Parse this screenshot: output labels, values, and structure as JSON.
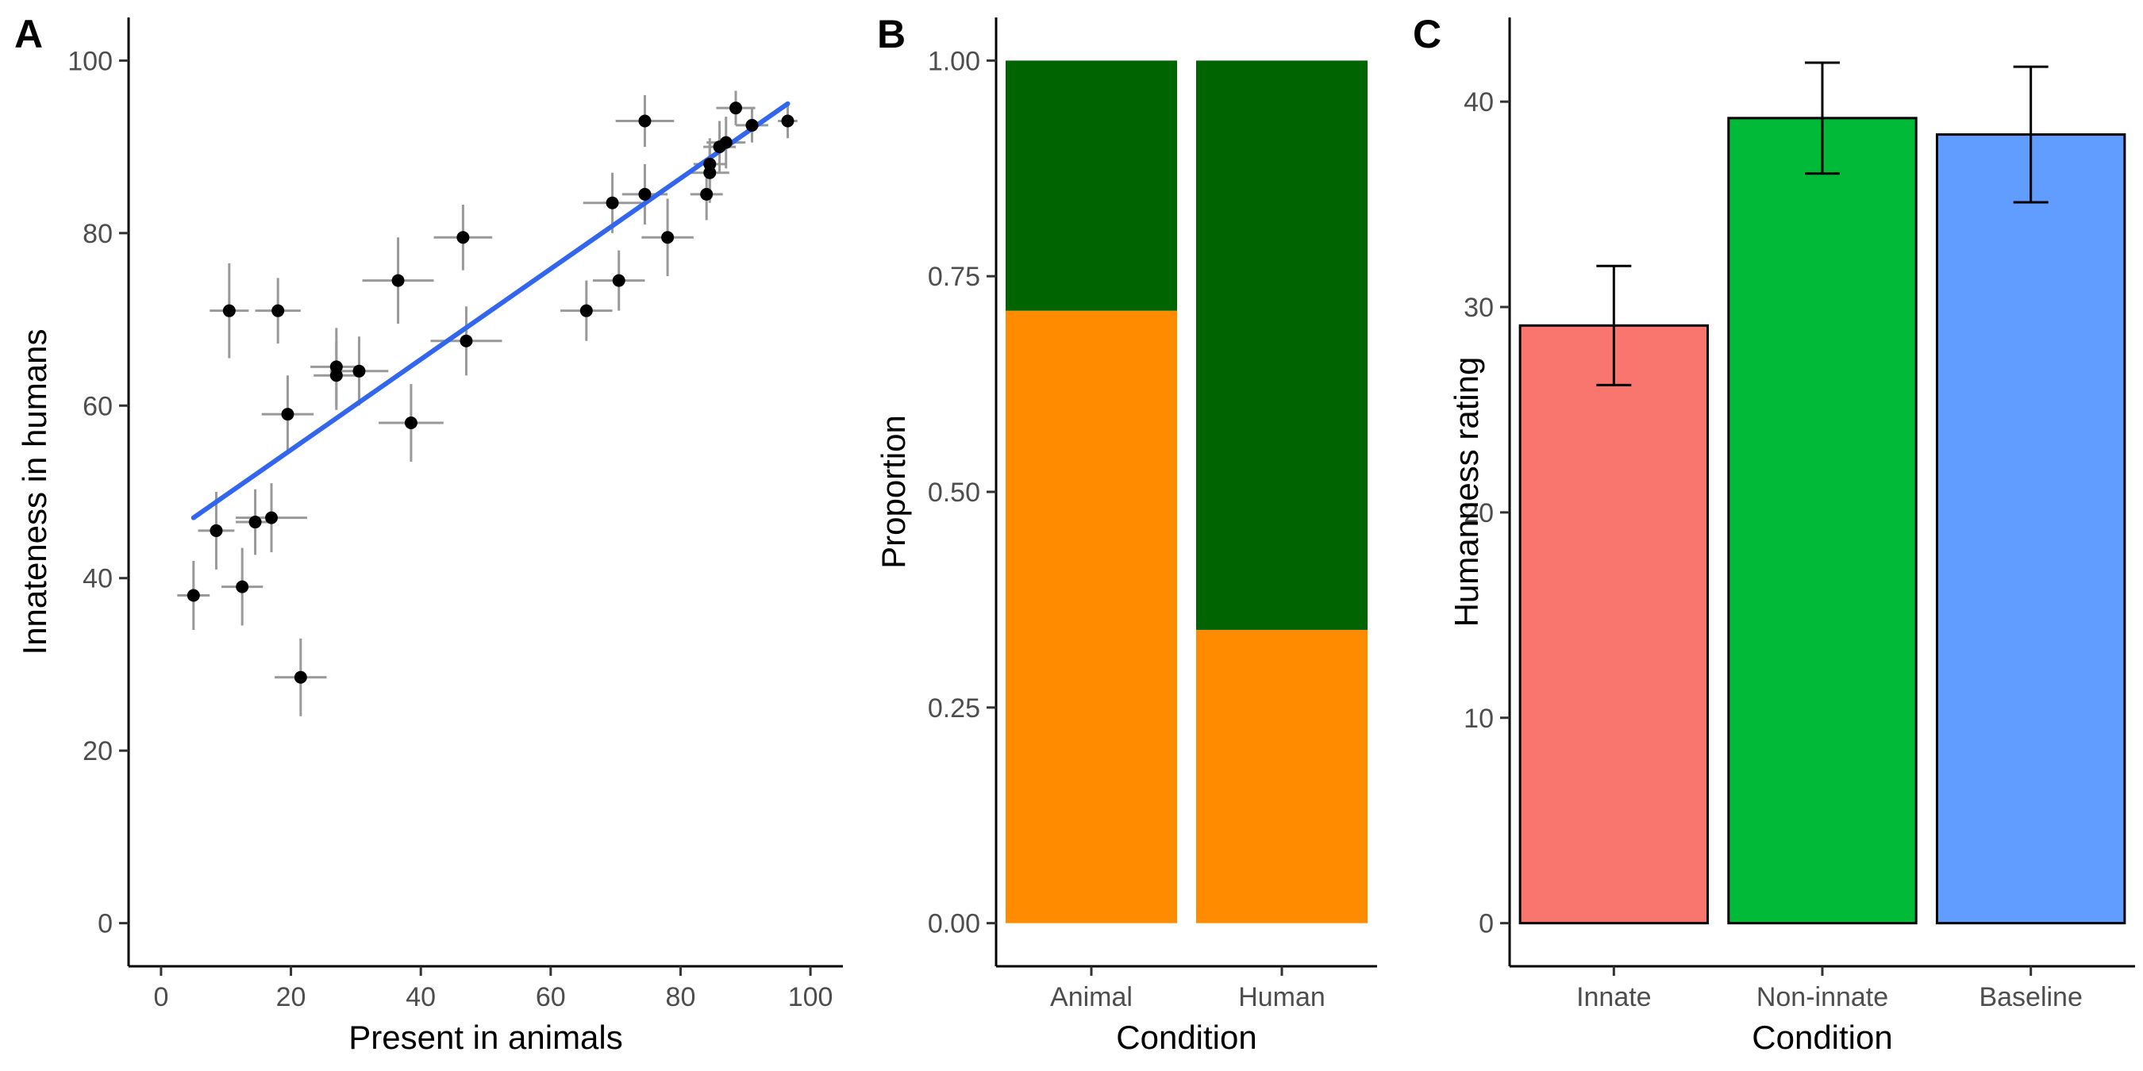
{
  "chart_data": [
    {
      "panel": "A",
      "type": "scatter",
      "xlabel": "Present in animals",
      "ylabel": "Innateness in humans",
      "xlim": [
        -5,
        105
      ],
      "ylim": [
        -5,
        105
      ],
      "xticks": [
        0,
        20,
        40,
        60,
        80,
        100
      ],
      "yticks": [
        0,
        20,
        40,
        60,
        80,
        100
      ],
      "grid": false,
      "point_color": "#000000",
      "errorbar_color": "#999999",
      "fit_line": {
        "x0": 5,
        "y0": 47,
        "x1": 96.5,
        "y1": 95,
        "color": "#3366ee"
      },
      "points": [
        {
          "x": 5,
          "y": 38,
          "xerr": 2.5,
          "yerr": 4
        },
        {
          "x": 8.5,
          "y": 45.5,
          "xerr": 2.8,
          "yerr": 4.5
        },
        {
          "x": 10.5,
          "y": 71,
          "xerr": 3,
          "yerr": 5.5
        },
        {
          "x": 12.5,
          "y": 39,
          "xerr": 3.2,
          "yerr": 4.5
        },
        {
          "x": 14.5,
          "y": 46.5,
          "xerr": 3,
          "yerr": 3.8
        },
        {
          "x": 17,
          "y": 47,
          "xerr": 5.5,
          "yerr": 4
        },
        {
          "x": 18,
          "y": 71,
          "xerr": 3.5,
          "yerr": 3.8
        },
        {
          "x": 19.5,
          "y": 59,
          "xerr": 4,
          "yerr": 4.5
        },
        {
          "x": 21.5,
          "y": 28.5,
          "xerr": 4,
          "yerr": 4.5
        },
        {
          "x": 27,
          "y": 64.5,
          "xerr": 4,
          "yerr": 4.5
        },
        {
          "x": 27,
          "y": 63.5,
          "xerr": 3.5,
          "yerr": 4
        },
        {
          "x": 30.5,
          "y": 64,
          "xerr": 4.5,
          "yerr": 4
        },
        {
          "x": 36.5,
          "y": 74.5,
          "xerr": 5.5,
          "yerr": 5
        },
        {
          "x": 38.5,
          "y": 58,
          "xerr": 5,
          "yerr": 4.5
        },
        {
          "x": 46.5,
          "y": 79.5,
          "xerr": 4.5,
          "yerr": 3.8
        },
        {
          "x": 47,
          "y": 67.5,
          "xerr": 5.5,
          "yerr": 4
        },
        {
          "x": 65.5,
          "y": 71,
          "xerr": 4,
          "yerr": 3.5
        },
        {
          "x": 69.5,
          "y": 83.5,
          "xerr": 4.5,
          "yerr": 3.5
        },
        {
          "x": 70.5,
          "y": 74.5,
          "xerr": 4,
          "yerr": 3.5
        },
        {
          "x": 74.5,
          "y": 84.5,
          "xerr": 3.5,
          "yerr": 3.5
        },
        {
          "x": 74.5,
          "y": 93,
          "xerr": 4.5,
          "yerr": 3
        },
        {
          "x": 78,
          "y": 79.5,
          "xerr": 4,
          "yerr": 4.5
        },
        {
          "x": 84,
          "y": 84.5,
          "xerr": 2.5,
          "yerr": 3
        },
        {
          "x": 84.5,
          "y": 87,
          "xerr": 3,
          "yerr": 3.5
        },
        {
          "x": 84.5,
          "y": 88,
          "xerr": 2.5,
          "yerr": 3
        },
        {
          "x": 86,
          "y": 90,
          "xerr": 2.5,
          "yerr": 3
        },
        {
          "x": 87,
          "y": 90.5,
          "xerr": 3,
          "yerr": 3
        },
        {
          "x": 88.5,
          "y": 94.5,
          "xerr": 3,
          "yerr": 2
        },
        {
          "x": 91,
          "y": 92.5,
          "xerr": 2.5,
          "yerr": 2
        },
        {
          "x": 96.5,
          "y": 93,
          "xerr": 1.5,
          "yerr": 2
        }
      ]
    },
    {
      "panel": "B",
      "type": "bar",
      "stacked": true,
      "xlabel": "Condition",
      "ylabel": "Proportion",
      "categories": [
        "Animal",
        "Human"
      ],
      "ylim": [
        -0.05,
        1.05
      ],
      "yticks": [
        "0.00",
        "0.25",
        "0.50",
        "0.75",
        "1.00"
      ],
      "series": [
        {
          "name": "lower",
          "color": "#ff8c00",
          "values": [
            0.71,
            0.34
          ]
        },
        {
          "name": "upper",
          "color": "#006400",
          "values": [
            0.29,
            0.66
          ]
        }
      ]
    },
    {
      "panel": "C",
      "type": "bar",
      "xlabel": "Condition",
      "ylabel": "Humanness rating",
      "categories": [
        "Innate",
        "Non-innate",
        "Baseline"
      ],
      "values": [
        29.1,
        39.2,
        38.4
      ],
      "errors_low": [
        26.2,
        36.5,
        35.1
      ],
      "errors_high": [
        32.0,
        41.9,
        41.7
      ],
      "colors": [
        "#f8766d",
        "#00ba38",
        "#619cff"
      ],
      "ylim": [
        -2.1,
        44.1
      ],
      "yticks": [
        0,
        10,
        20,
        30,
        40
      ]
    }
  ]
}
